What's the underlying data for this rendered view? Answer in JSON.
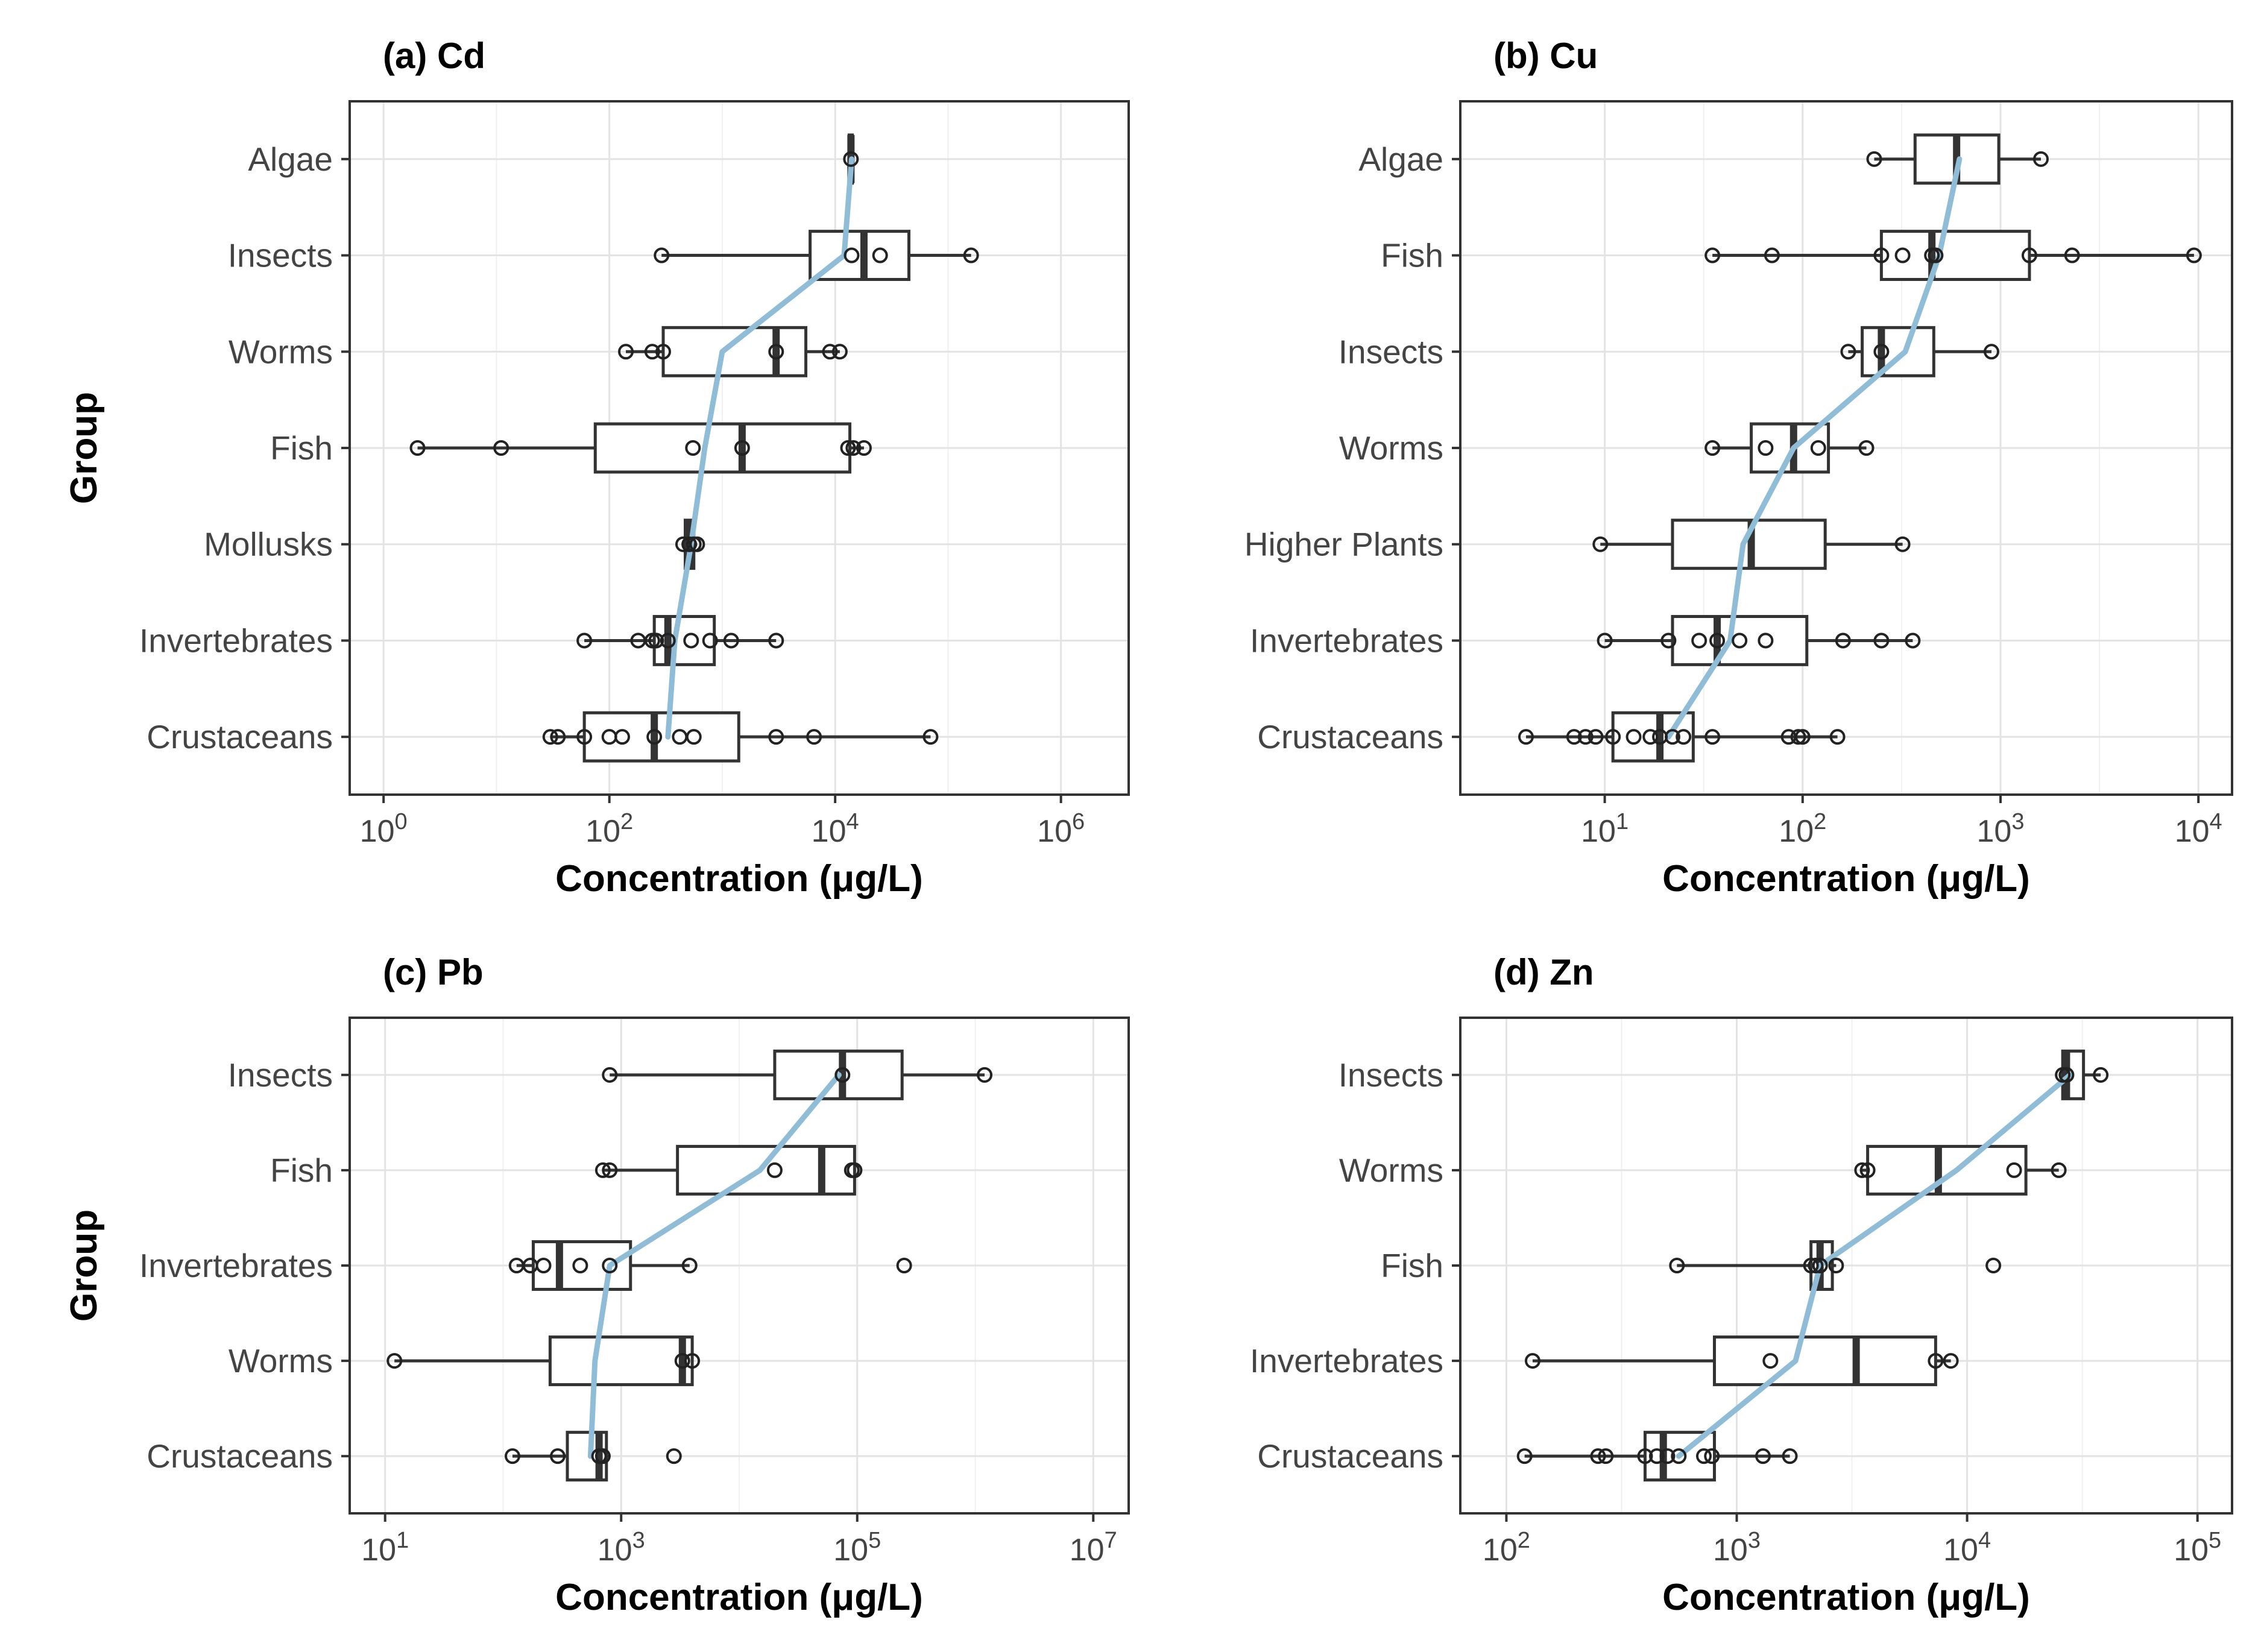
{
  "chart_data": [
    {
      "type": "boxplot",
      "title": "(a) Cd",
      "xlabel": "Concentration (μg/L)",
      "ylabel": "Group",
      "x_scale": "log10",
      "xlim_log10": [
        -0.3,
        6.6
      ],
      "x_ticks": [
        {
          "base": "10",
          "exp": "0",
          "log10": 0
        },
        {
          "base": "10",
          "exp": "2",
          "log10": 2
        },
        {
          "base": "10",
          "exp": "4",
          "log10": 4
        },
        {
          "base": "10",
          "exp": "6",
          "log10": 6
        }
      ],
      "groups": [
        {
          "name": "Algae",
          "lo": 13000,
          "q1": 13300,
          "median": 13800,
          "q3": 14200,
          "hi": 14500,
          "points": [
            13800
          ]
        },
        {
          "name": "Insects",
          "lo": 290,
          "q1": 6000,
          "median": 18000,
          "q3": 45000,
          "hi": 160000,
          "points": [
            290,
            14000,
            25000,
            160000
          ]
        },
        {
          "name": "Worms",
          "lo": 140,
          "q1": 300,
          "median": 3000,
          "q3": 5500,
          "hi": 11000,
          "points": [
            140,
            240,
            300,
            3000,
            9000,
            11000
          ]
        },
        {
          "name": "Fish",
          "lo": 2,
          "q1": 75,
          "median": 1500,
          "q3": 13500,
          "hi": 18000,
          "points": [
            2,
            11,
            550,
            1500,
            13000,
            14500,
            18000
          ]
        },
        {
          "name": "Mollusks",
          "lo": 450,
          "q1": 470,
          "median": 510,
          "q3": 560,
          "hi": 600,
          "points": [
            450,
            510,
            560,
            600
          ]
        },
        {
          "name": "Invertebrates",
          "lo": 60,
          "q1": 250,
          "median": 330,
          "q3": 850,
          "hi": 3000,
          "points": [
            60,
            180,
            240,
            260,
            330,
            530,
            780,
            1200,
            3000
          ]
        },
        {
          "name": "Crustaceans",
          "lo": 30,
          "q1": 60,
          "median": 250,
          "q3": 1400,
          "hi": 70000,
          "points": [
            30,
            35,
            60,
            100,
            130,
            250,
            420,
            560,
            3000,
            6500,
            70000
          ]
        }
      ],
      "trend": [
        14000,
        12000,
        1000,
        700,
        530,
        380,
        330
      ]
    },
    {
      "type": "boxplot",
      "title": "(b) Cu",
      "xlabel": "Concentration (μg/L)",
      "ylabel": "Group",
      "x_scale": "log10",
      "xlim_log10": [
        0.27,
        4.17
      ],
      "x_ticks": [
        {
          "base": "10",
          "exp": "1",
          "log10": 1
        },
        {
          "base": "10",
          "exp": "2",
          "log10": 2
        },
        {
          "base": "10",
          "exp": "3",
          "log10": 3
        },
        {
          "base": "10",
          "exp": "4",
          "log10": 4
        }
      ],
      "groups": [
        {
          "name": "Algae",
          "lo": 230,
          "q1": 370,
          "median": 600,
          "q3": 980,
          "hi": 1600,
          "points": [
            230,
            1600
          ]
        },
        {
          "name": "Fish",
          "lo": 35,
          "q1": 250,
          "median": 450,
          "q3": 1400,
          "hi": 9500,
          "points": [
            35,
            70,
            250,
            320,
            450,
            470,
            1400,
            2300,
            9500
          ]
        },
        {
          "name": "Insects",
          "lo": 170,
          "q1": 200,
          "median": 250,
          "q3": 460,
          "hi": 900,
          "points": [
            170,
            250,
            900
          ]
        },
        {
          "name": "Worms",
          "lo": 35,
          "q1": 55,
          "median": 90,
          "q3": 135,
          "hi": 210,
          "points": [
            35,
            65,
            120,
            210
          ]
        },
        {
          "name": "Higher Plants",
          "lo": 9.5,
          "q1": 22,
          "median": 55,
          "q3": 130,
          "hi": 320,
          "points": [
            9.5,
            320
          ]
        },
        {
          "name": "Invertebrates",
          "lo": 10,
          "q1": 22,
          "median": 37,
          "q3": 105,
          "hi": 360,
          "points": [
            10,
            21,
            30,
            37,
            48,
            65,
            160,
            250,
            360
          ]
        },
        {
          "name": "Crustaceans",
          "lo": 4,
          "q1": 11,
          "median": 19,
          "q3": 28,
          "hi": 150,
          "points": [
            4,
            7,
            8,
            9,
            11,
            14,
            17,
            19,
            22,
            25,
            35,
            85,
            95,
            100,
            150
          ]
        }
      ],
      "trend": [
        620,
        490,
        330,
        90,
        50,
        43,
        21
      ]
    },
    {
      "type": "boxplot",
      "title": "(c) Pb",
      "xlabel": "Concentration (μg/L)",
      "ylabel": "Group",
      "x_scale": "log10",
      "xlim_log10": [
        0.7,
        7.3
      ],
      "x_ticks": [
        {
          "base": "10",
          "exp": "1",
          "log10": 1
        },
        {
          "base": "10",
          "exp": "3",
          "log10": 3
        },
        {
          "base": "10",
          "exp": "5",
          "log10": 5
        },
        {
          "base": "10",
          "exp": "7",
          "log10": 7
        }
      ],
      "groups": [
        {
          "name": "Insects",
          "lo": 800,
          "q1": 20000,
          "median": 75000,
          "q3": 240000,
          "hi": 1200000,
          "points": [
            800,
            75000,
            1200000
          ]
        },
        {
          "name": "Fish",
          "lo": 700,
          "q1": 3000,
          "median": 50000,
          "q3": 95000,
          "hi": 95000,
          "points": [
            700,
            800,
            20000,
            90000,
            95000
          ]
        },
        {
          "name": "Invertebrates",
          "lo": 130,
          "q1": 180,
          "median": 300,
          "q3": 1200,
          "hi": 3800,
          "points": [
            130,
            170,
            220,
            450,
            800,
            3800,
            250000
          ]
        },
        {
          "name": "Worms",
          "lo": 12,
          "q1": 250,
          "median": 3300,
          "q3": 4000,
          "hi": 4000,
          "points": [
            12,
            3300,
            4000
          ]
        },
        {
          "name": "Crustaceans",
          "lo": 120,
          "q1": 350,
          "median": 650,
          "q3": 750,
          "hi": 800,
          "points": [
            120,
            290,
            650,
            700,
            2800
          ]
        }
      ],
      "trend": [
        70000,
        15000,
        800,
        600,
        550
      ]
    },
    {
      "type": "boxplot",
      "title": "(d) Zn",
      "xlabel": "Concentration (μg/L)",
      "ylabel": "Group",
      "x_scale": "log10",
      "xlim_log10": [
        1.8,
        5.15
      ],
      "x_ticks": [
        {
          "base": "10",
          "exp": "2",
          "log10": 2
        },
        {
          "base": "10",
          "exp": "3",
          "log10": 3
        },
        {
          "base": "10",
          "exp": "4",
          "log10": 4
        },
        {
          "base": "10",
          "exp": "5",
          "log10": 5
        }
      ],
      "groups": [
        {
          "name": "Insects",
          "lo": 26000,
          "q1": 26000,
          "median": 27000,
          "q3": 32000,
          "hi": 38000,
          "points": [
            26000,
            27000,
            38000
          ]
        },
        {
          "name": "Worms",
          "lo": 3500,
          "q1": 3700,
          "median": 7500,
          "q3": 18000,
          "hi": 25000,
          "points": [
            3500,
            3700,
            16000,
            25000
          ]
        },
        {
          "name": "Fish",
          "lo": 550,
          "q1": 2100,
          "median": 2300,
          "q3": 2600,
          "hi": 2700,
          "points": [
            550,
            2100,
            2200,
            2300,
            2700,
            13000
          ]
        },
        {
          "name": "Invertebrates",
          "lo": 130,
          "q1": 800,
          "median": 3300,
          "q3": 7300,
          "hi": 8500,
          "points": [
            130,
            1400,
            7300,
            8500
          ]
        },
        {
          "name": "Crustaceans",
          "lo": 120,
          "q1": 400,
          "median": 480,
          "q3": 800,
          "hi": 1700,
          "points": [
            120,
            250,
            270,
            400,
            450,
            500,
            560,
            720,
            780,
            1300,
            1700
          ]
        }
      ],
      "trend": [
        28000,
        9000,
        2300,
        1800,
        560
      ]
    }
  ]
}
